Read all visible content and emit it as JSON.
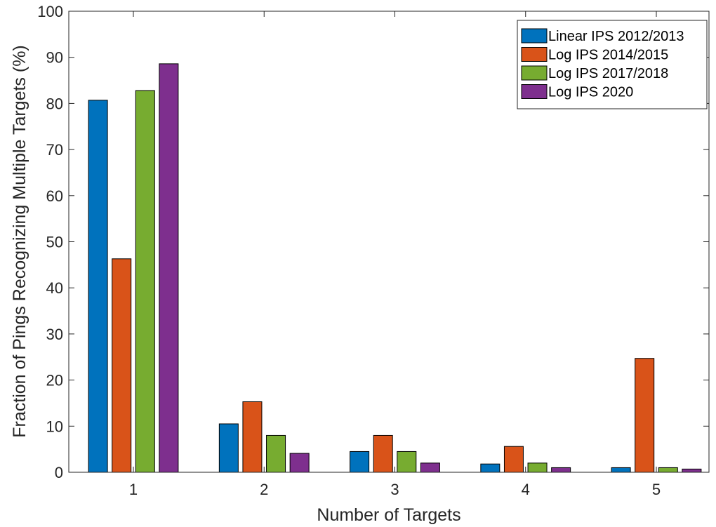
{
  "chart_data": {
    "type": "bar",
    "xlabel": "Number of Targets",
    "ylabel": "Fraction of Pings Recognizing Multiple Targets (%)",
    "categories": [
      "1",
      "2",
      "3",
      "4",
      "5"
    ],
    "ylim": [
      0,
      100
    ],
    "yticks": [
      "0",
      "10",
      "20",
      "30",
      "40",
      "50",
      "60",
      "70",
      "80",
      "90",
      "100"
    ],
    "grid": false,
    "legend_position": "top-right",
    "series": [
      {
        "name": "Linear IPS 2012/2013",
        "color": "#0072BD",
        "values": [
          80.7,
          10.5,
          4.5,
          1.8,
          1.0
        ]
      },
      {
        "name": "Log IPS 2014/2015",
        "color": "#D95319",
        "values": [
          46.3,
          15.3,
          8.0,
          5.6,
          24.7
        ]
      },
      {
        "name": "Log IPS 2017/2018",
        "color": "#77AC30",
        "values": [
          82.8,
          8.0,
          4.5,
          2.0,
          1.0
        ]
      },
      {
        "name": "Log IPS 2020",
        "color": "#7E2F8E",
        "values": [
          88.6,
          4.1,
          2.0,
          1.0,
          0.7
        ]
      }
    ]
  }
}
